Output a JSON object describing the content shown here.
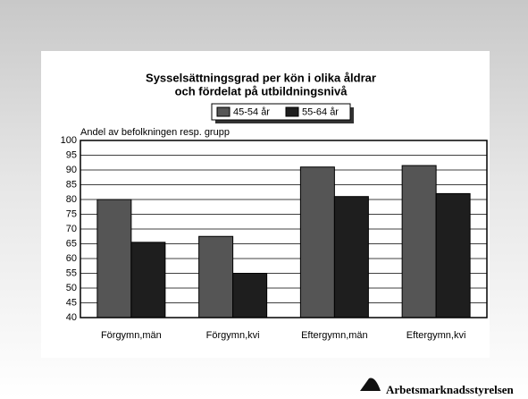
{
  "chart_data": {
    "type": "bar",
    "title": [
      "Sysselsättningsgrad per kön i olika åldrar",
      "och fördelat på utbildningsnivå"
    ],
    "y_label": "Andel av befolkningen resp. grupp",
    "categories": [
      "Förgymn,män",
      "Förgymn,kvi",
      "Eftergymn,män",
      "Eftergymn,kvi"
    ],
    "series": [
      {
        "name": "45-54 år",
        "color": "#555555",
        "values": [
          80,
          67.5,
          91,
          91.5
        ]
      },
      {
        "name": "55-64 år",
        "color": "#1e1e1e",
        "values": [
          65.5,
          55,
          81,
          82
        ]
      }
    ],
    "ylim": [
      40,
      100
    ],
    "yticks": [
      40,
      45,
      50,
      55,
      60,
      65,
      70,
      75,
      80,
      85,
      90,
      95,
      100
    ],
    "grid": true
  },
  "logo": "Arbetsmarknadsstyrelsen"
}
